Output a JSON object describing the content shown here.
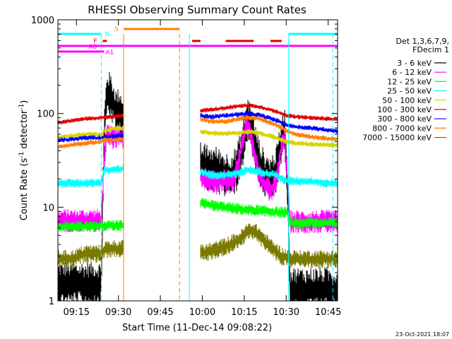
{
  "chart_data": {
    "type": "line",
    "title": "RHESSI Observing Summary Count Rates",
    "xlabel": "Start Time (11-Dec-14 09:08:22)",
    "ylabel_main": "Count Rate (s",
    "ylabel_sup1": "-1",
    "ylabel_mid": " detector",
    "ylabel_sup2": "-1",
    "ylabel_end": ")",
    "yscale": "log",
    "ylim": [
      1,
      1000
    ],
    "xlim_minutes": [
      0,
      100
    ],
    "x_ticks": [
      {
        "label": "09:15",
        "t": 6.63
      },
      {
        "label": "09:30",
        "t": 21.63
      },
      {
        "label": "09:45",
        "t": 36.63
      },
      {
        "label": "10:00",
        "t": 51.63
      },
      {
        "label": "10:15",
        "t": 66.63
      },
      {
        "label": "10:30",
        "t": 81.63
      },
      {
        "label": "10:45",
        "t": 96.63
      }
    ],
    "y_ticks": [
      {
        "label": "1",
        "v": 1
      },
      {
        "label": "10",
        "v": 10
      },
      {
        "label": "100",
        "v": 100
      },
      {
        "label": "1000",
        "v": 1000
      }
    ],
    "legend_header": [
      "Det 1,3,6,7,9,",
      "FDecim 1"
    ],
    "series": [
      {
        "name": "3 - 6 keV",
        "color": "#000000"
      },
      {
        "name": "6 - 12 keV",
        "color": "#ff00ff"
      },
      {
        "name": "12 - 25 keV",
        "color": "#00ff00"
      },
      {
        "name": "25 - 50 keV",
        "color": "#00ffff"
      },
      {
        "name": "50 - 100 keV",
        "color": "#d4d400"
      },
      {
        "name": "100 - 300 keV",
        "color": "#e00000"
      },
      {
        "name": "300 - 800 keV",
        "color": "#0000ff"
      },
      {
        "name": "800 - 7000 keV",
        "color": "#ff8000"
      },
      {
        "name": "7000 - 15000 keV",
        "color": "#7a7a00"
      }
    ],
    "flag_labels": {
      "N": "N",
      "S": "S",
      "F": "F",
      "A0": "A0",
      "A1": "A1"
    },
    "flag_colors": {
      "N": "#00ffff",
      "S": "#ff8000",
      "F": "#e00000",
      "A": "#ff00ff"
    },
    "data_segments": [
      {
        "t_start": 0,
        "t_end": 23.5,
        "values": {
          "3 - 6 keV": [
            [
              0,
              1.5
            ],
            [
              5,
              1.5
            ],
            [
              10,
              1.5
            ],
            [
              14,
              1.5
            ],
            [
              15.5,
              1.5
            ],
            [
              16.5,
              60
            ],
            [
              17.5,
              170
            ],
            [
              19,
              150
            ],
            [
              20,
              120
            ],
            [
              21,
              100
            ],
            [
              22,
              110
            ],
            [
              23,
              95
            ]
          ],
          "6 - 12 keV": [
            [
              0,
              7.2
            ],
            [
              5,
              7.2
            ],
            [
              10,
              7.2
            ],
            [
              14,
              7.2
            ],
            [
              15.5,
              7.2
            ],
            [
              16.5,
              30
            ],
            [
              17.5,
              60
            ],
            [
              19,
              55
            ],
            [
              21,
              56
            ],
            [
              23,
              56
            ]
          ],
          "12 - 25 keV": [
            [
              0,
              6.2
            ],
            [
              5,
              6.2
            ],
            [
              10,
              6.2
            ],
            [
              15.5,
              6.2
            ],
            [
              16.5,
              6.4
            ],
            [
              19,
              6.4
            ],
            [
              23,
              6.4
            ]
          ],
          "25 - 50 keV": [
            [
              0,
              18
            ],
            [
              5,
              18
            ],
            [
              10,
              18
            ],
            [
              15.5,
              18
            ],
            [
              16.5,
              25
            ],
            [
              19,
              25
            ],
            [
              23,
              26
            ]
          ],
          "50 - 100 keV": [
            [
              0,
              55
            ],
            [
              5,
              58
            ],
            [
              10,
              60
            ],
            [
              15.5,
              60
            ],
            [
              16.5,
              65
            ],
            [
              19,
              68
            ],
            [
              23,
              70
            ]
          ],
          "100 - 300 keV": [
            [
              0,
              80
            ],
            [
              5,
              84
            ],
            [
              10,
              88
            ],
            [
              15.5,
              90
            ],
            [
              19,
              92
            ],
            [
              23,
              95
            ]
          ],
          "300 - 800 keV": [
            [
              0,
              52
            ],
            [
              5,
              53
            ],
            [
              10,
              55
            ],
            [
              15.5,
              55
            ],
            [
              16.5,
              56
            ],
            [
              19,
              57
            ],
            [
              23,
              58
            ]
          ],
          "800 - 7000 keV": [
            [
              0,
              44
            ],
            [
              5,
              46
            ],
            [
              10,
              48
            ],
            [
              15.5,
              50
            ],
            [
              16.5,
              52
            ],
            [
              19,
              52
            ],
            [
              23,
              53
            ]
          ],
          "7000 - 15000 keV": [
            [
              0,
              2.8
            ],
            [
              5,
              2.8
            ],
            [
              10,
              3.2
            ],
            [
              15.5,
              3.2
            ],
            [
              16.5,
              3.5
            ],
            [
              19,
              3.6
            ],
            [
              23,
              3.6
            ]
          ]
        }
      },
      {
        "t_start": 51.0,
        "t_end": 100,
        "values": {
          "3 - 6 keV": [
            [
              51,
              28
            ],
            [
              54,
              26
            ],
            [
              57,
              25
            ],
            [
              60,
              22
            ],
            [
              62,
              22
            ],
            [
              64,
              26
            ],
            [
              66,
              45
            ],
            [
              67,
              70
            ],
            [
              68,
              85
            ],
            [
              69,
              75
            ],
            [
              70,
              50
            ],
            [
              72,
              30
            ],
            [
              74,
              22
            ],
            [
              76,
              20
            ],
            [
              78,
              24
            ],
            [
              80,
              55
            ],
            [
              81,
              70
            ],
            [
              82,
              22
            ],
            [
              83,
              1.3
            ],
            [
              90,
              1.3
            ],
            [
              96,
              1.3
            ],
            [
              100,
              1.3
            ]
          ],
          "6 - 12 keV": [
            [
              51,
              22
            ],
            [
              53,
              20
            ],
            [
              55,
              19
            ],
            [
              57,
              18
            ],
            [
              59,
              20
            ],
            [
              61,
              18
            ],
            [
              63,
              20
            ],
            [
              65,
              35
            ],
            [
              66.5,
              60
            ],
            [
              67.5,
              80
            ],
            [
              68.5,
              70
            ],
            [
              70,
              40
            ],
            [
              72,
              22
            ],
            [
              74,
              17
            ],
            [
              76,
              15
            ],
            [
              78,
              18
            ],
            [
              80,
              45
            ],
            [
              81,
              60
            ],
            [
              82,
              20
            ],
            [
              83,
              7
            ],
            [
              90,
              7
            ],
            [
              96,
              7
            ],
            [
              100,
              7
            ]
          ],
          "12 - 25 keV": [
            [
              51,
              11
            ],
            [
              55,
              10.5
            ],
            [
              60,
              10
            ],
            [
              65,
              9.5
            ],
            [
              70,
              9.3
            ],
            [
              75,
              9
            ],
            [
              80,
              8.8
            ],
            [
              82,
              8.8
            ],
            [
              83,
              6.8
            ],
            [
              90,
              6.8
            ],
            [
              96,
              6.8
            ],
            [
              100,
              6.8
            ]
          ],
          "25 - 50 keV": [
            [
              51,
              24
            ],
            [
              55,
              22
            ],
            [
              60,
              22
            ],
            [
              65,
              23
            ],
            [
              68,
              25
            ],
            [
              72,
              24
            ],
            [
              78,
              22
            ],
            [
              80,
              20
            ],
            [
              82,
              19
            ],
            [
              85,
              19
            ],
            [
              90,
              19
            ],
            [
              96,
              18
            ],
            [
              100,
              18
            ]
          ],
          "50 - 100 keV": [
            [
              51,
              64
            ],
            [
              55,
              62
            ],
            [
              60,
              61
            ],
            [
              65,
              62
            ],
            [
              68,
              64
            ],
            [
              72,
              62
            ],
            [
              78,
              55
            ],
            [
              82,
              50
            ],
            [
              85,
              48
            ],
            [
              90,
              47
            ],
            [
              96,
              46
            ],
            [
              100,
              46
            ]
          ],
          "100 - 300 keV": [
            [
              51,
              108
            ],
            [
              55,
              110
            ],
            [
              60,
              115
            ],
            [
              65,
              120
            ],
            [
              68,
              122
            ],
            [
              72,
              118
            ],
            [
              78,
              105
            ],
            [
              82,
              95
            ],
            [
              85,
              92
            ],
            [
              90,
              90
            ],
            [
              96,
              88
            ],
            [
              100,
              87
            ]
          ],
          "300 - 800 keV": [
            [
              51,
              95
            ],
            [
              55,
              92
            ],
            [
              60,
              95
            ],
            [
              65,
              98
            ],
            [
              68,
              100
            ],
            [
              72,
              96
            ],
            [
              78,
              85
            ],
            [
              82,
              75
            ],
            [
              85,
              72
            ],
            [
              90,
              70
            ],
            [
              96,
              67
            ],
            [
              100,
              65
            ]
          ],
          "800 - 7000 keV": [
            [
              51,
              87
            ],
            [
              55,
              82
            ],
            [
              60,
              82
            ],
            [
              65,
              88
            ],
            [
              68,
              90
            ],
            [
              72,
              88
            ],
            [
              78,
              75
            ],
            [
              82,
              65
            ],
            [
              85,
              60
            ],
            [
              90,
              57
            ],
            [
              96,
              54
            ],
            [
              100,
              53
            ]
          ],
          "7000 - 15000 keV": [
            [
              51,
              3.2
            ],
            [
              55,
              3.4
            ],
            [
              60,
              3.8
            ],
            [
              65,
              4.5
            ],
            [
              68,
              5.5
            ],
            [
              70,
              5.6
            ],
            [
              72,
              5
            ],
            [
              75,
              4
            ],
            [
              80,
              3
            ],
            [
              83,
              2.8
            ],
            [
              90,
              2.8
            ],
            [
              96,
              2.8
            ],
            [
              100,
              2.8
            ]
          ]
        }
      }
    ],
    "vertical_lines": [
      {
        "t": 15.5,
        "style": "dashed",
        "color": "#00ffff"
      },
      {
        "t": 23.5,
        "style": "solid",
        "color": "#ff8000"
      },
      {
        "t": 43.5,
        "style": "dashed",
        "color": "#ff8000"
      },
      {
        "t": 47.0,
        "style": "solid",
        "color": "#00ffff"
      },
      {
        "t": 82.5,
        "style": "solid",
        "color": "#00ffff"
      },
      {
        "t": 98.3,
        "style": "dashed",
        "color": "#00ffff"
      }
    ],
    "flag_bars": {
      "N": [
        [
          0,
          15.5
        ],
        [
          82.5,
          100
        ]
      ],
      "S": [
        [
          23.5,
          43.5
        ]
      ],
      "F": [
        [
          16,
          17.5
        ],
        [
          48,
          51
        ],
        [
          60,
          70
        ],
        [
          76,
          80
        ]
      ],
      "A0": [
        [
          0,
          100
        ]
      ],
      "A1": [
        [
          0,
          16.5
        ]
      ]
    }
  },
  "footer_timestamp": "23-Oct-2021 18:07"
}
